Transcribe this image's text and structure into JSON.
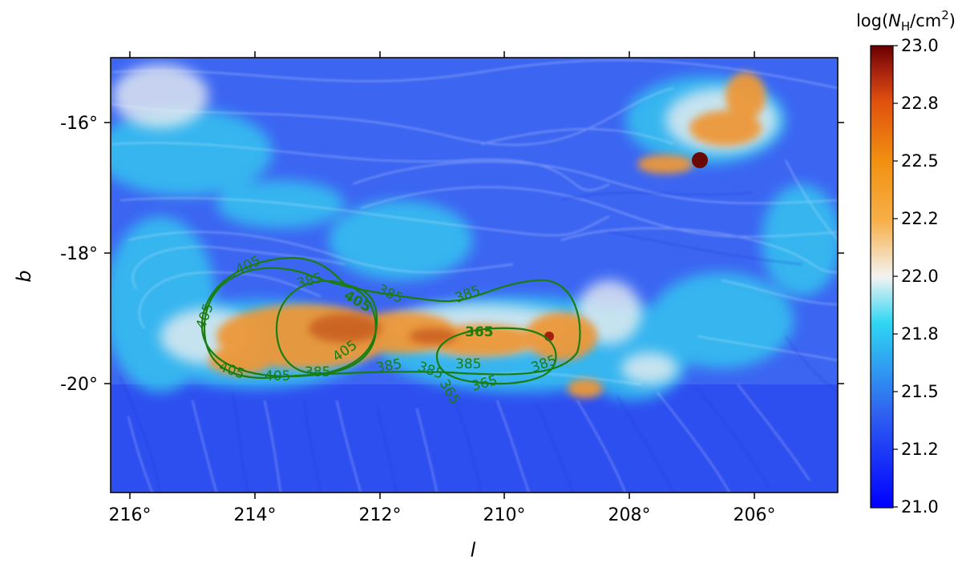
{
  "figure": {
    "x_axis_label": "l",
    "y_axis_label": "b",
    "x_tick_labels": [
      "216°",
      "214°",
      "212°",
      "210°",
      "208°",
      "206°"
    ],
    "y_tick_labels": [
      "-16°",
      "-18°",
      "-20°"
    ],
    "colorbar": {
      "label_prefix": "log(",
      "label_N": "N",
      "label_N_sub": "H",
      "label_suffix": "/cm",
      "label_sup": "2",
      "label_close": ")",
      "tick_labels": [
        "23.0",
        "22.8",
        "22.5",
        "22.2",
        "22.0",
        "21.8",
        "21.5",
        "21.2",
        "21.0"
      ],
      "colors": [
        "#0000ff",
        "#2f5ff0",
        "#2fd6f2",
        "#f3f3f1",
        "#f7b04a",
        "#f29010",
        "#e0500e",
        "#a21f0e",
        "#680000"
      ]
    },
    "contour_color": "#1a7d0f",
    "contour_labels": [
      "405",
      "405",
      "405",
      "405",
      "405",
      "405",
      "385",
      "385",
      "385",
      "385",
      "385",
      "385",
      "365",
      "365",
      "385",
      "385",
      "365"
    ],
    "background_colors": {
      "diffuse": "#3a63f0",
      "filament": "#2cc8f0",
      "dense": "#f09a3a",
      "peak": "#6a0a05"
    }
  }
}
